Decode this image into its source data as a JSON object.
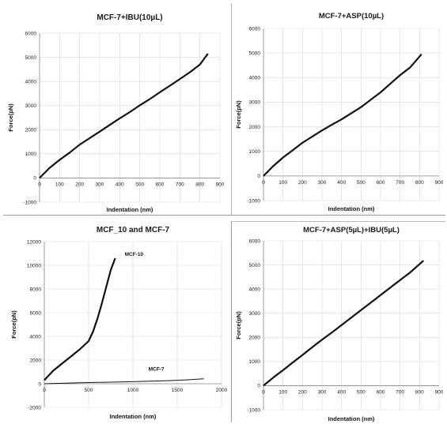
{
  "chart_data": [
    {
      "type": "line",
      "title": "MCF-7+IBU(10µL)",
      "xlabel": "Indentation (nm)",
      "ylabel": "Force(pN)",
      "xlim": [
        0,
        900
      ],
      "ylim": [
        -1000,
        6000
      ],
      "xticks": [
        0,
        100,
        200,
        300,
        400,
        500,
        600,
        700,
        800,
        900
      ],
      "yticks": [
        -1000,
        0,
        1000,
        2000,
        3000,
        4000,
        5000,
        6000
      ],
      "grid": true,
      "color": "#111111",
      "series": [
        {
          "x": [
            0,
            50,
            100,
            150,
            200,
            250,
            300,
            350,
            400,
            450,
            500,
            550,
            600,
            650,
            700,
            750,
            800,
            840
          ],
          "y": [
            0,
            420,
            750,
            1050,
            1380,
            1650,
            1920,
            2200,
            2470,
            2730,
            3010,
            3270,
            3550,
            3820,
            4100,
            4380,
            4700,
            5150
          ]
        }
      ]
    },
    {
      "type": "line",
      "title": "MCF-7+ASP(10µL)",
      "xlabel": "Indentation (nm)",
      "ylabel": "Force(pN)",
      "xlim": [
        0,
        900
      ],
      "ylim": [
        -1000,
        6000
      ],
      "xticks": [
        0,
        100,
        200,
        300,
        400,
        500,
        600,
        700,
        800,
        900
      ],
      "yticks": [
        -1000,
        0,
        1000,
        2000,
        3000,
        4000,
        5000,
        6000
      ],
      "grid": true,
      "color": "#111111",
      "series": [
        {
          "x": [
            0,
            50,
            100,
            150,
            200,
            250,
            300,
            350,
            400,
            450,
            500,
            550,
            600,
            650,
            700,
            750,
            810
          ],
          "y": [
            0,
            400,
            750,
            1050,
            1350,
            1600,
            1850,
            2080,
            2300,
            2550,
            2800,
            3100,
            3400,
            3750,
            4100,
            4400,
            4950
          ]
        }
      ]
    },
    {
      "type": "line",
      "title": "MCF_10 and MCF-7",
      "xlabel": "Indentation (nm)",
      "ylabel": "Force(pN)",
      "xlim": [
        0,
        2000
      ],
      "ylim": [
        -2000,
        12000
      ],
      "xticks": [
        0,
        500,
        1000,
        1500,
        2000
      ],
      "yticks": [
        -2000,
        0,
        2000,
        4000,
        6000,
        8000,
        10000,
        12000
      ],
      "grid": true,
      "color": "#111111",
      "series": [
        {
          "name": "MCF-10",
          "x": [
            0,
            50,
            100,
            200,
            300,
            400,
            500,
            550,
            600,
            650,
            700,
            750,
            800
          ],
          "y": [
            300,
            700,
            1100,
            1700,
            2300,
            2900,
            3600,
            4400,
            5500,
            6800,
            8200,
            9600,
            10600
          ]
        },
        {
          "name": "MCF-7",
          "x": [
            0,
            200,
            400,
            600,
            800,
            1000,
            1200,
            1400,
            1600,
            1800
          ],
          "y": [
            0,
            40,
            80,
            110,
            140,
            170,
            210,
            260,
            330,
            420
          ]
        }
      ]
    },
    {
      "type": "line",
      "title": "MCF-7+ASP(5µL)+IBU(5µL)",
      "xlabel": "Indentation (nm)",
      "ylabel": "Force(pN)",
      "xlim": [
        0,
        900
      ],
      "ylim": [
        -1000,
        6000
      ],
      "xticks": [
        0,
        100,
        200,
        300,
        400,
        500,
        600,
        700,
        800,
        900
      ],
      "yticks": [
        -1000,
        0,
        1000,
        2000,
        3000,
        4000,
        5000,
        6000
      ],
      "grid": true,
      "color": "#111111",
      "series": [
        {
          "x": [
            0,
            50,
            100,
            150,
            200,
            250,
            300,
            350,
            400,
            450,
            500,
            550,
            600,
            650,
            700,
            750,
            820
          ],
          "y": [
            0,
            330,
            640,
            960,
            1270,
            1590,
            1900,
            2200,
            2510,
            2820,
            3130,
            3440,
            3750,
            4060,
            4370,
            4680,
            5180
          ]
        }
      ]
    }
  ]
}
